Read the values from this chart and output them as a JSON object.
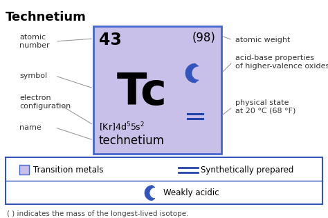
{
  "title": "Technetium",
  "atomic_number": "43",
  "atomic_weight": "(98)",
  "symbol": "Tc",
  "name": "technetium",
  "element_bg": "#c8c0e8",
  "element_border": "#4466cc",
  "legend_border": "#3355bb",
  "label_color": "#333333",
  "arrow_color": "#999999",
  "background_color": "#ffffff",
  "double_line_color": "#2244aa",
  "crescent_color": "#3355bb",
  "title_fontsize": 13,
  "symbol_fontsize": 46,
  "number_fontsize": 17,
  "weight_fontsize": 12,
  "config_fontsize": 9,
  "name_fontsize": 12,
  "annotation_fontsize": 8,
  "legend_fontsize": 8.5,
  "footer_fontsize": 7.5,
  "fig_w": 4.74,
  "fig_h": 3.16,
  "dpi": 100
}
